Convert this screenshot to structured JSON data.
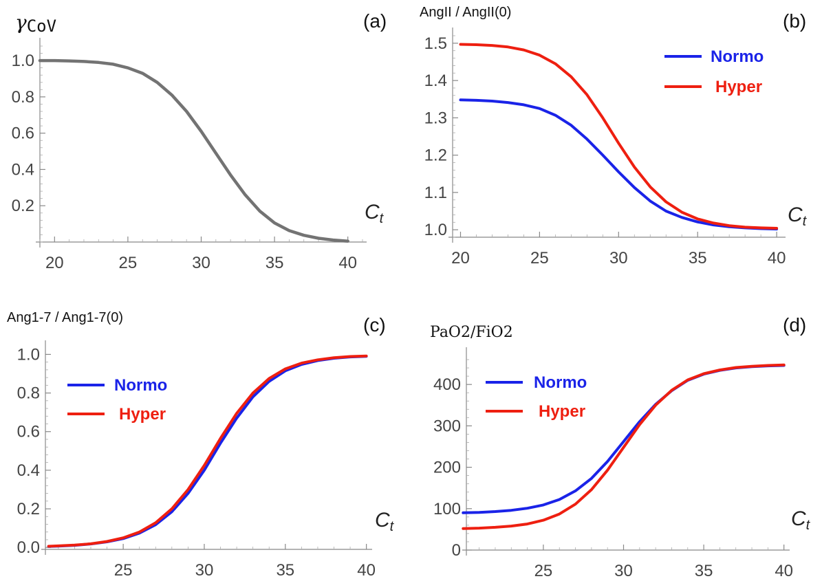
{
  "colors": {
    "single": "#737373",
    "normo": "#1a23e8",
    "hyper": "#ee1f10"
  },
  "chart_data": [
    {
      "id": "a",
      "type": "line",
      "tag": "(a)",
      "title": "CoV",
      "title_prefix": "γ",
      "xlabel": "C",
      "xlabel_sub": "t",
      "xlim": [
        19,
        41
      ],
      "ylim": [
        0,
        1.08
      ],
      "xticks": [
        20,
        25,
        30,
        35,
        40
      ],
      "yticks": [
        0.2,
        0.4,
        0.6,
        0.8,
        1.0
      ],
      "ytick_labels": [
        "0.2",
        "0.4",
        "0.6",
        "0.8",
        "1.0"
      ],
      "legend": null,
      "series": [
        {
          "color_key": "single",
          "x": [
            19,
            20,
            21,
            22,
            23,
            24,
            25,
            26,
            27,
            28,
            29,
            30,
            31,
            32,
            33,
            34,
            35,
            36,
            37,
            38,
            39,
            40
          ],
          "y": [
            1.0,
            1.0,
            0.998,
            0.995,
            0.99,
            0.98,
            0.96,
            0.93,
            0.88,
            0.81,
            0.72,
            0.61,
            0.49,
            0.37,
            0.26,
            0.17,
            0.105,
            0.063,
            0.037,
            0.021,
            0.011,
            0.005
          ]
        }
      ]
    },
    {
      "id": "b",
      "type": "line",
      "tag": "(b)",
      "title": "AngII / AngII(0)",
      "xlabel": "C",
      "xlabel_sub": "t",
      "xlim": [
        19.5,
        40.3
      ],
      "ylim": [
        0.98,
        1.52
      ],
      "xticks": [
        20,
        25,
        30,
        35,
        40
      ],
      "yticks": [
        1.0,
        1.1,
        1.2,
        1.3,
        1.4,
        1.5
      ],
      "ytick_labels": [
        "1.0",
        "1.1",
        "1.2",
        "1.3",
        "1.4",
        "1.5"
      ],
      "legend": {
        "position": "top-right",
        "entries": [
          "Normo",
          "Hyper"
        ]
      },
      "series": [
        {
          "name": "Normo",
          "color_key": "normo",
          "x": [
            20,
            21,
            22,
            23,
            24,
            25,
            26,
            27,
            28,
            29,
            30,
            31,
            32,
            33,
            34,
            35,
            36,
            37,
            38,
            39,
            40
          ],
          "y": [
            1.348,
            1.347,
            1.345,
            1.341,
            1.335,
            1.325,
            1.307,
            1.28,
            1.243,
            1.2,
            1.155,
            1.113,
            1.077,
            1.05,
            1.033,
            1.021,
            1.013,
            1.008,
            1.005,
            1.003,
            1.002
          ]
        },
        {
          "name": "Hyper",
          "color_key": "hyper",
          "x": [
            20,
            21,
            22,
            23,
            24,
            25,
            26,
            27,
            28,
            29,
            30,
            31,
            32,
            33,
            34,
            35,
            36,
            37,
            38,
            39,
            40
          ],
          "y": [
            1.497,
            1.496,
            1.494,
            1.49,
            1.482,
            1.468,
            1.445,
            1.41,
            1.362,
            1.3,
            1.232,
            1.168,
            1.115,
            1.075,
            1.047,
            1.029,
            1.018,
            1.011,
            1.007,
            1.005,
            1.004
          ]
        }
      ]
    },
    {
      "id": "c",
      "type": "line",
      "tag": "(c)",
      "title": "Ang1-7 / Ang1-7(0)",
      "xlabel": "C",
      "xlabel_sub": "t",
      "xlim": [
        20.2,
        40.1
      ],
      "ylim": [
        -0.01,
        1.03
      ],
      "xticks": [
        25,
        30,
        35,
        40
      ],
      "yticks": [
        0.0,
        0.2,
        0.4,
        0.6,
        0.8,
        1.0
      ],
      "ytick_labels": [
        "0.0",
        "0.2",
        "0.4",
        "0.6",
        "0.8",
        "1.0"
      ],
      "legend": {
        "position": "top-left",
        "entries": [
          "Normo",
          "Hyper"
        ]
      },
      "series": [
        {
          "name": "Normo",
          "color_key": "normo",
          "x": [
            20.4,
            21,
            22,
            23,
            24,
            25,
            26,
            27,
            28,
            29,
            30,
            31,
            32,
            33,
            34,
            35,
            36,
            37,
            38,
            39,
            40
          ],
          "y": [
            0.005,
            0.007,
            0.011,
            0.018,
            0.029,
            0.046,
            0.074,
            0.118,
            0.185,
            0.28,
            0.4,
            0.54,
            0.67,
            0.78,
            0.86,
            0.915,
            0.948,
            0.968,
            0.98,
            0.987,
            0.99
          ]
        },
        {
          "name": "Hyper",
          "color_key": "hyper",
          "x": [
            20.4,
            21,
            22,
            23,
            24,
            25,
            26,
            27,
            28,
            29,
            30,
            31,
            32,
            33,
            34,
            35,
            36,
            37,
            38,
            39,
            40
          ],
          "y": [
            0.006,
            0.008,
            0.012,
            0.019,
            0.031,
            0.05,
            0.08,
            0.128,
            0.2,
            0.3,
            0.425,
            0.565,
            0.695,
            0.8,
            0.875,
            0.925,
            0.955,
            0.972,
            0.983,
            0.989,
            0.992
          ]
        }
      ]
    },
    {
      "id": "d",
      "type": "line",
      "tag": "(d)",
      "title": "PaO2/FiO2",
      "xlabel": "C",
      "xlabel_sub": "t",
      "xlim": [
        20.2,
        40.1
      ],
      "ylim": [
        0,
        470
      ],
      "xticks": [
        25,
        30,
        35,
        40
      ],
      "yticks": [
        0,
        100,
        200,
        300,
        400
      ],
      "ytick_labels": [
        "0",
        "100",
        "200",
        "300",
        "400"
      ],
      "legend": {
        "position": "top-left",
        "entries": [
          "Normo",
          "Hyper"
        ]
      },
      "series": [
        {
          "name": "Normo",
          "color_key": "normo",
          "x": [
            20,
            21,
            22,
            23,
            24,
            25,
            26,
            27,
            28,
            29,
            30,
            31,
            32,
            33,
            34,
            35,
            36,
            37,
            38,
            39,
            40
          ],
          "y": [
            90,
            91,
            93,
            96,
            101,
            109,
            122,
            143,
            173,
            214,
            262,
            310,
            352,
            385,
            410,
            425,
            434,
            440,
            443,
            445,
            446
          ]
        },
        {
          "name": "Hyper",
          "color_key": "hyper",
          "x": [
            20,
            21,
            22,
            23,
            24,
            25,
            26,
            27,
            28,
            29,
            30,
            31,
            32,
            33,
            34,
            35,
            36,
            37,
            38,
            39,
            40
          ],
          "y": [
            52,
            53,
            55,
            58,
            63,
            72,
            87,
            111,
            146,
            193,
            248,
            303,
            350,
            386,
            411,
            426,
            435,
            441,
            444,
            446,
            447
          ]
        }
      ]
    }
  ]
}
